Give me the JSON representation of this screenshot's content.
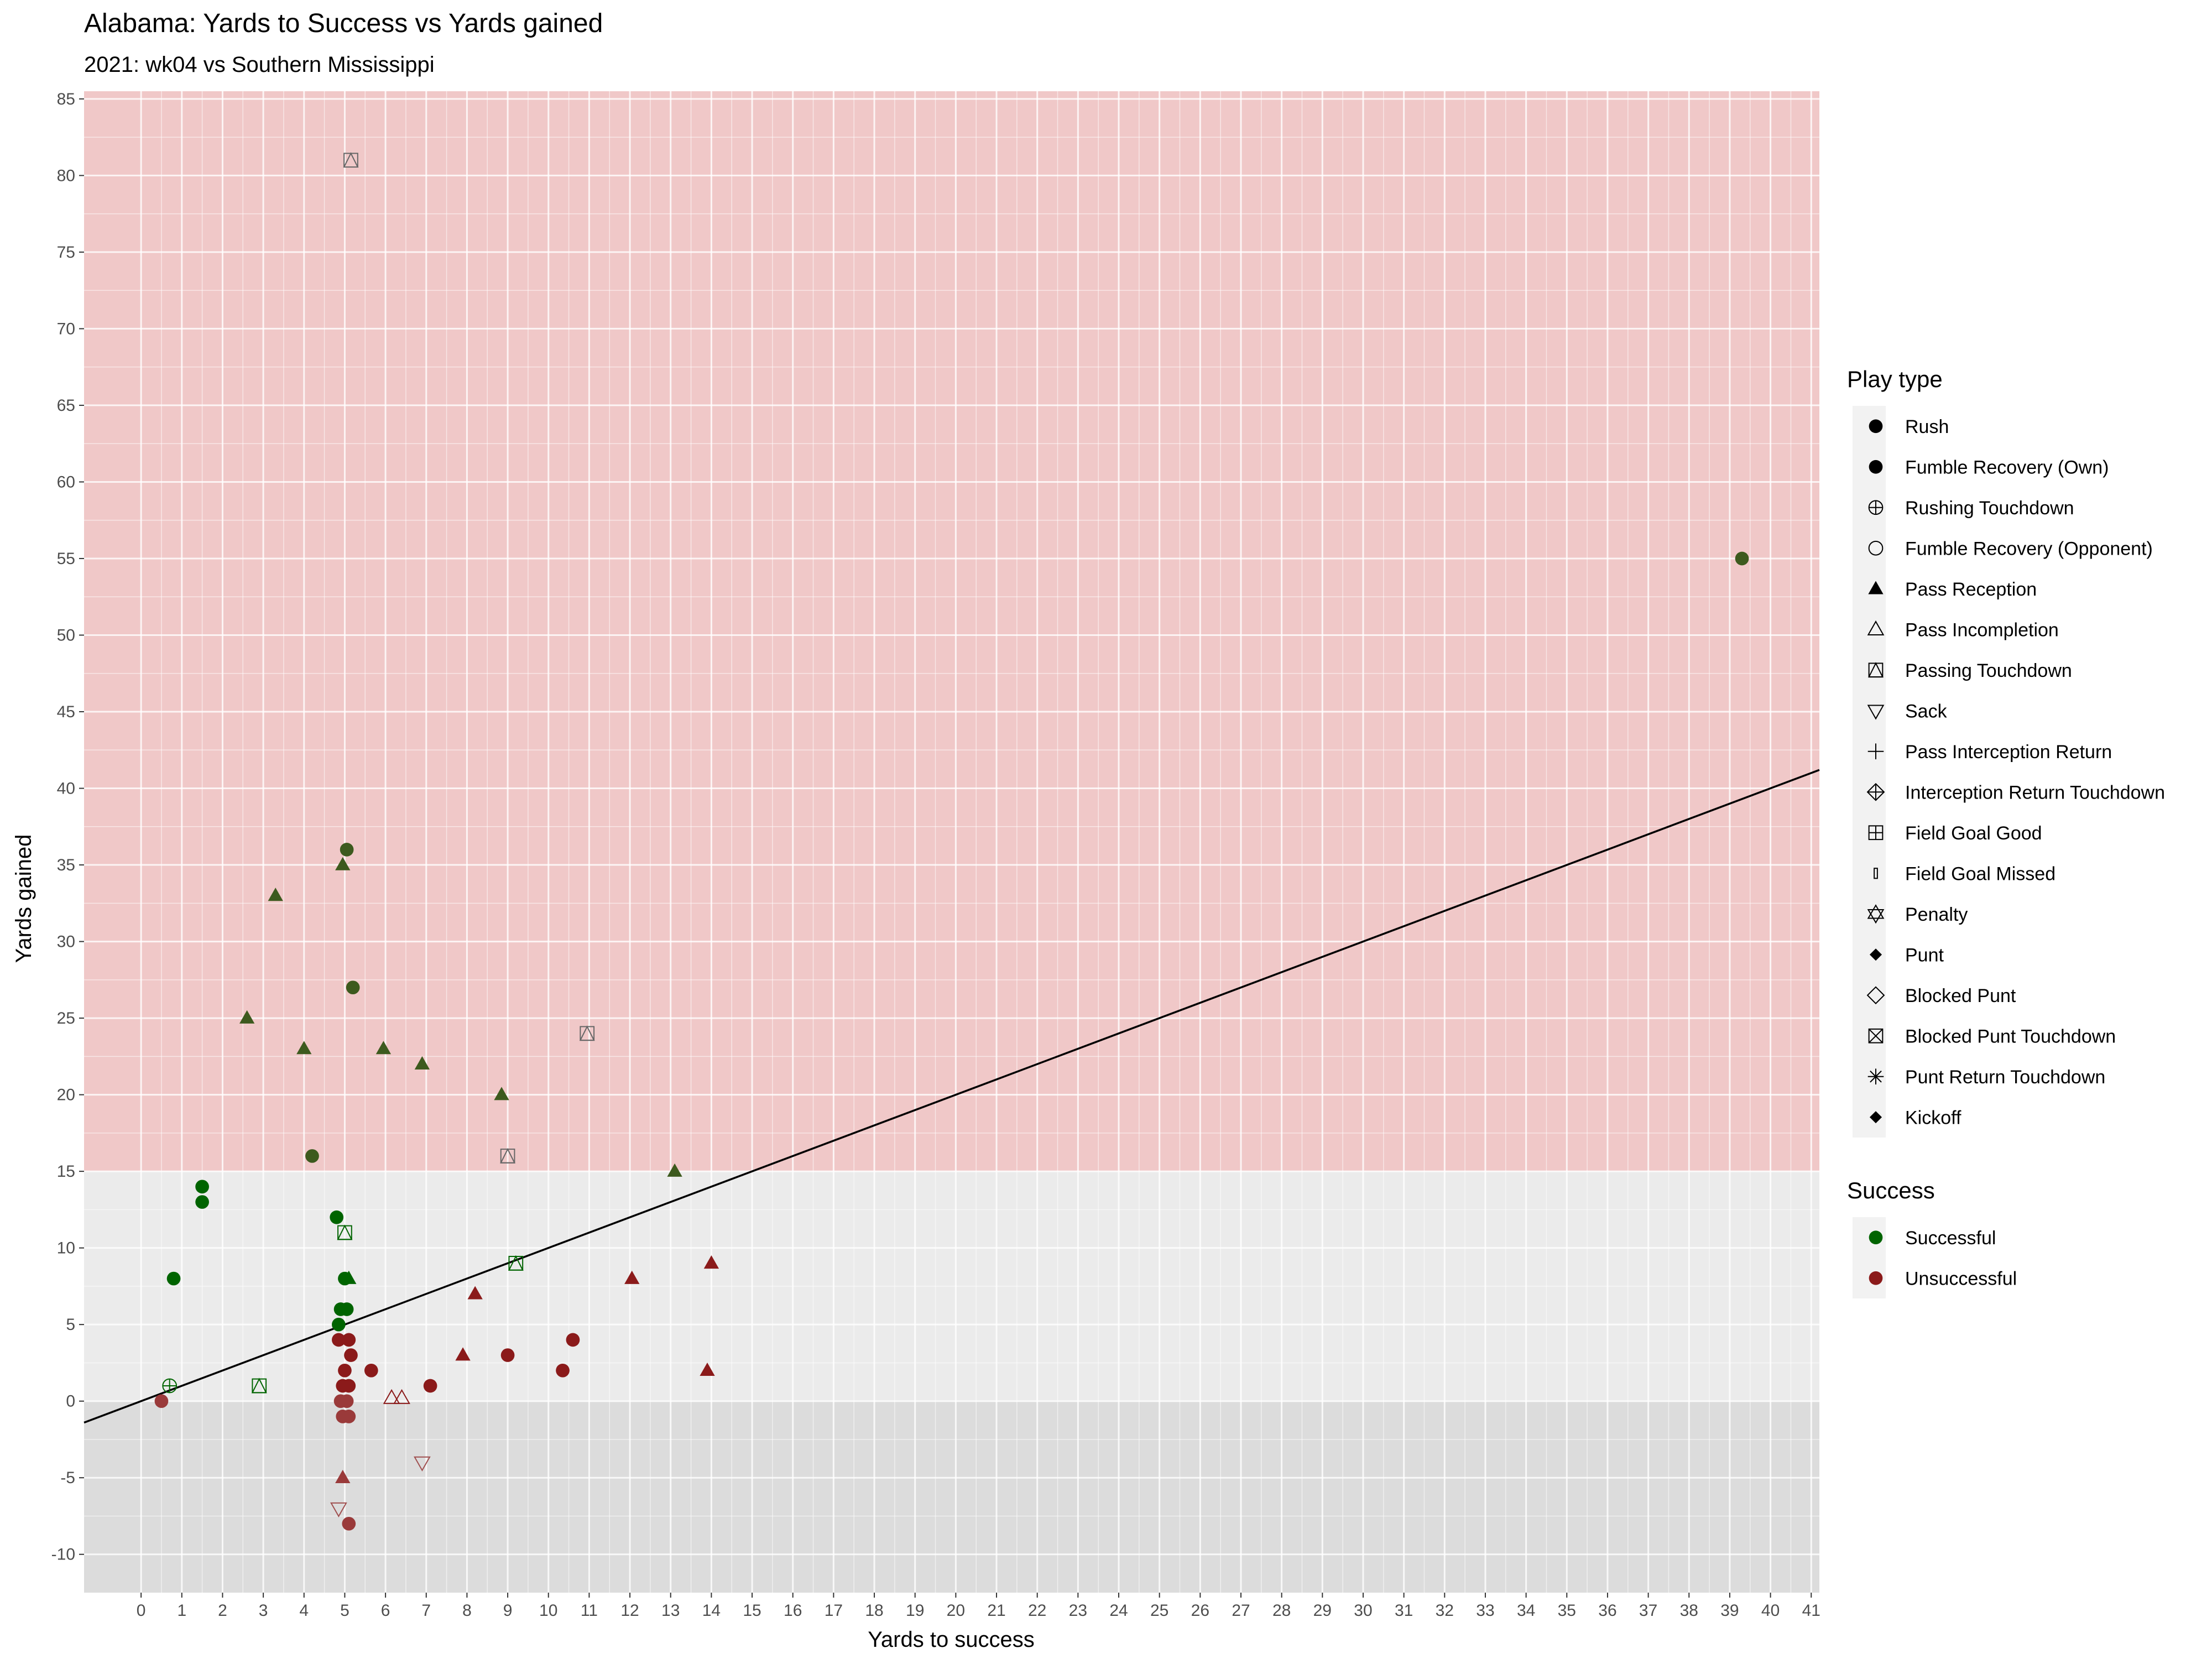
{
  "chart_data": {
    "type": "scatter",
    "title": "Alabama: Yards to Success vs Yards gained",
    "subtitle": "2021: wk04 vs Southern Mississippi",
    "xlabel": "Yards to success",
    "ylabel": "Yards gained",
    "xlim": [
      -1.4,
      41.2
    ],
    "ylim": [
      -12.5,
      85.5
    ],
    "x_ticks": [
      0,
      1,
      2,
      3,
      4,
      5,
      6,
      7,
      8,
      9,
      10,
      11,
      12,
      13,
      14,
      15,
      16,
      17,
      18,
      19,
      20,
      21,
      22,
      23,
      24,
      25,
      26,
      27,
      28,
      29,
      30,
      31,
      32,
      33,
      34,
      35,
      36,
      37,
      38,
      39,
      40,
      41
    ],
    "y_ticks": [
      -10,
      -5,
      0,
      5,
      10,
      15,
      20,
      25,
      30,
      35,
      40,
      45,
      50,
      55,
      60,
      65,
      70,
      75,
      80,
      85
    ],
    "grid": true,
    "regions": [
      {
        "from": 15,
        "to": 85.5,
        "color": "#f0c8c8"
      },
      {
        "from": 0,
        "to": 15,
        "color": "#ebebeb"
      },
      {
        "from": -12.5,
        "to": 0,
        "color": "#dcdcdc"
      }
    ],
    "reference_line": {
      "intercept": 0,
      "slope": 1
    },
    "colors": {
      "Successful": "#006400",
      "Unsuccessful": "#8b1a1a",
      "big_play_fill": "#3d5a1e",
      "big_play_stroke": "#666666"
    },
    "legend_position": "right",
    "legends": [
      {
        "title": "Play type",
        "items": [
          {
            "label": "Rush",
            "symbol": "filled-circle"
          },
          {
            "label": "Fumble Recovery (Own)",
            "symbol": "filled-circle"
          },
          {
            "label": "Rushing Touchdown",
            "symbol": "circle-plus"
          },
          {
            "label": "Fumble Recovery (Opponent)",
            "symbol": "open-circle"
          },
          {
            "label": "Pass Reception",
            "symbol": "filled-triangle"
          },
          {
            "label": "Pass Incompletion",
            "symbol": "open-triangle"
          },
          {
            "label": "Passing Touchdown",
            "symbol": "square-triangle"
          },
          {
            "label": "Sack",
            "symbol": "open-triangle-down"
          },
          {
            "label": "Pass Interception Return",
            "symbol": "plus"
          },
          {
            "label": "Interception Return Touchdown",
            "symbol": "diamond-plus"
          },
          {
            "label": "Field Goal Good",
            "symbol": "square-plus"
          },
          {
            "label": "Field Goal Missed",
            "symbol": "thin-rect"
          },
          {
            "label": "Penalty",
            "symbol": "star-of-david"
          },
          {
            "label": "Punt",
            "symbol": "filled-diamond"
          },
          {
            "label": "Blocked Punt",
            "symbol": "open-diamond"
          },
          {
            "label": "Blocked Punt Touchdown",
            "symbol": "square-x"
          },
          {
            "label": "Punt Return Touchdown",
            "symbol": "asterisk"
          },
          {
            "label": "Kickoff",
            "symbol": "filled-diamond"
          }
        ]
      },
      {
        "title": "Success",
        "items": [
          {
            "label": "Successful",
            "symbol": "filled-circle",
            "color": "#006400"
          },
          {
            "label": "Unsuccessful",
            "symbol": "filled-circle",
            "color": "#8b1a1a"
          }
        ]
      }
    ],
    "series": [
      {
        "name": "Successful",
        "points": [
          {
            "x": 1.5,
            "y": 14,
            "play": "Rush"
          },
          {
            "x": 1.5,
            "y": 13,
            "play": "Rush"
          },
          {
            "x": 0.8,
            "y": 8,
            "play": "Rush"
          },
          {
            "x": 0.7,
            "y": 1,
            "play": "Rushing Touchdown"
          },
          {
            "x": 2.9,
            "y": 1,
            "play": "Passing Touchdown"
          },
          {
            "x": 4.8,
            "y": 12,
            "play": "Rush"
          },
          {
            "x": 5.0,
            "y": 11,
            "play": "Passing Touchdown"
          },
          {
            "x": 5.1,
            "y": 8,
            "play": "Pass Reception"
          },
          {
            "x": 5.0,
            "y": 8,
            "play": "Rush"
          },
          {
            "x": 4.9,
            "y": 6,
            "play": "Rush"
          },
          {
            "x": 5.05,
            "y": 6,
            "play": "Rush"
          },
          {
            "x": 4.85,
            "y": 5,
            "play": "Rush"
          },
          {
            "x": 9.2,
            "y": 9,
            "play": "Passing Touchdown"
          },
          {
            "x": 13.1,
            "y": 15,
            "play": "Pass Reception"
          },
          {
            "x": 4.2,
            "y": 16,
            "play": "Rush"
          },
          {
            "x": 9.0,
            "y": 16,
            "play": "Passing Touchdown"
          },
          {
            "x": 8.85,
            "y": 20,
            "play": "Pass Reception"
          },
          {
            "x": 6.9,
            "y": 22,
            "play": "Pass Reception"
          },
          {
            "x": 2.6,
            "y": 25,
            "play": "Pass Reception"
          },
          {
            "x": 4.0,
            "y": 23,
            "play": "Pass Reception"
          },
          {
            "x": 5.95,
            "y": 23,
            "play": "Pass Reception"
          },
          {
            "x": 10.95,
            "y": 24,
            "play": "Passing Touchdown"
          },
          {
            "x": 5.2,
            "y": 27,
            "play": "Rush"
          },
          {
            "x": 3.3,
            "y": 33,
            "play": "Pass Reception"
          },
          {
            "x": 4.95,
            "y": 35,
            "play": "Pass Reception"
          },
          {
            "x": 5.05,
            "y": 36,
            "play": "Rush"
          },
          {
            "x": 5.15,
            "y": 81,
            "play": "Passing Touchdown"
          },
          {
            "x": 39.3,
            "y": 55,
            "play": "Rush"
          }
        ]
      },
      {
        "name": "Unsuccessful",
        "points": [
          {
            "x": 0.5,
            "y": 0,
            "play": "Rush"
          },
          {
            "x": 4.85,
            "y": 4,
            "play": "Rush"
          },
          {
            "x": 5.1,
            "y": 4,
            "play": "Rush"
          },
          {
            "x": 5.15,
            "y": 3,
            "play": "Rush"
          },
          {
            "x": 5.0,
            "y": 2,
            "play": "Rush"
          },
          {
            "x": 4.95,
            "y": 1,
            "play": "Rush"
          },
          {
            "x": 5.1,
            "y": 1,
            "play": "Rush"
          },
          {
            "x": 4.9,
            "y": 0,
            "play": "Rush"
          },
          {
            "x": 5.05,
            "y": 0,
            "play": "Rush"
          },
          {
            "x": 4.95,
            "y": -1,
            "play": "Rush"
          },
          {
            "x": 5.1,
            "y": -1,
            "play": "Rush"
          },
          {
            "x": 5.1,
            "y": -8,
            "play": "Rush"
          },
          {
            "x": 4.95,
            "y": -5,
            "play": "Pass Reception"
          },
          {
            "x": 4.85,
            "y": -7,
            "play": "Sack"
          },
          {
            "x": 6.9,
            "y": -4,
            "play": "Sack"
          },
          {
            "x": 6.15,
            "y": 0.2,
            "play": "Pass Incompletion"
          },
          {
            "x": 6.4,
            "y": 0.2,
            "play": "Pass Incompletion"
          },
          {
            "x": 5.65,
            "y": 2,
            "play": "Rush"
          },
          {
            "x": 7.1,
            "y": 1,
            "play": "Rush"
          },
          {
            "x": 7.9,
            "y": 3,
            "play": "Pass Reception"
          },
          {
            "x": 8.2,
            "y": 7,
            "play": "Pass Reception"
          },
          {
            "x": 9.0,
            "y": 3,
            "play": "Rush"
          },
          {
            "x": 10.35,
            "y": 2,
            "play": "Rush"
          },
          {
            "x": 10.6,
            "y": 4,
            "play": "Rush"
          },
          {
            "x": 12.05,
            "y": 8,
            "play": "Pass Reception"
          },
          {
            "x": 13.9,
            "y": 2,
            "play": "Pass Reception"
          },
          {
            "x": 14.0,
            "y": 9,
            "play": "Pass Reception"
          }
        ]
      }
    ]
  }
}
